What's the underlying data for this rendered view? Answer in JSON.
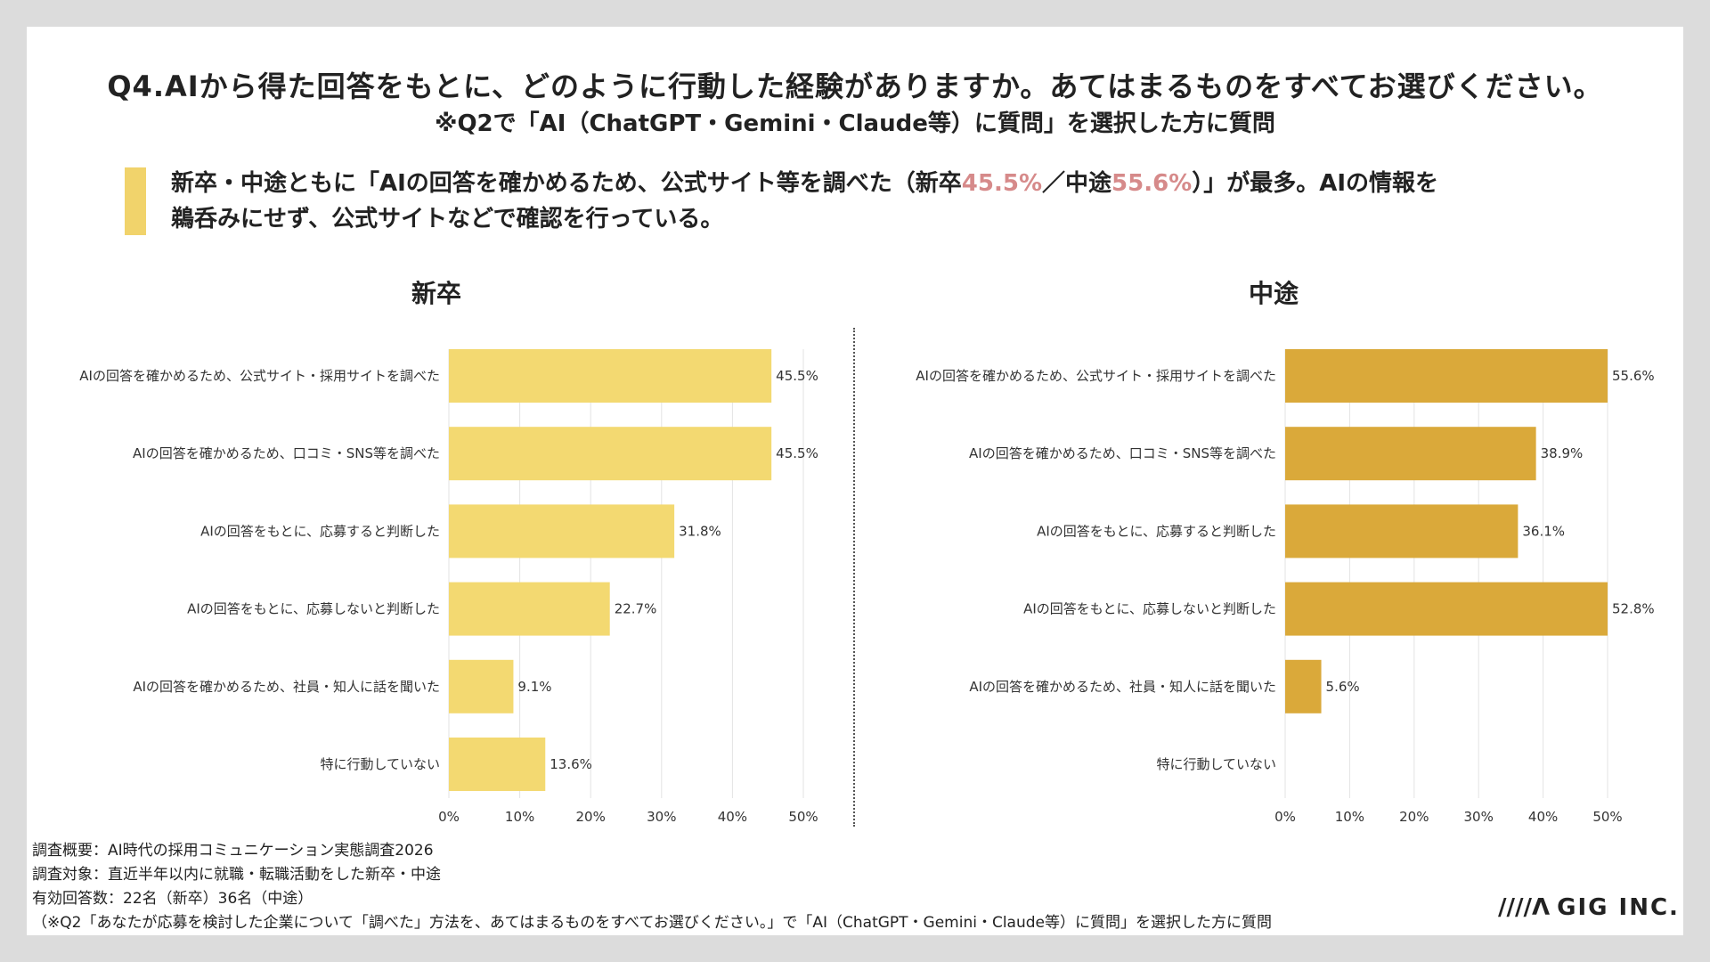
{
  "header": {
    "title": "Q4.AIから得た回答をもとに、どのように行動した経験がありますか。あてはまるものをすべてお選びください。",
    "subtitle": "※Q2で「AI（ChatGPT・Gemini・Claude等）に質問」を選択した方に質問"
  },
  "summary": {
    "line1_a": "新卒・中途ともに「AIの回答を確かめるため、公式サイト等を調べた（新卒",
    "line1_hl1": "45.5%",
    "line1_b": "／中途",
    "line1_hl2": "55.6%",
    "line1_c": "）」が最多。AIの情報を",
    "line2": "鵜呑みにせず、公式サイトなどで確認を行っている。",
    "accent_color": "#d68a8a"
  },
  "chart_data": [
    {
      "type": "bar",
      "orientation": "horizontal",
      "title": "新卒",
      "categories": [
        "AIの回答を確かめるため、公式サイト・採用サイトを調べた",
        "AIの回答を確かめるため、口コミ・SNS等を調べた",
        "AIの回答をもとに、応募すると判断した",
        "AIの回答をもとに、応募しないと判断した",
        "AIの回答を確かめるため、社員・知人に話を聞いた",
        "特に行動していない"
      ],
      "values": [
        45.5,
        45.5,
        31.8,
        22.7,
        9.1,
        13.6
      ],
      "value_labels": [
        "45.5%",
        "45.5%",
        "31.8%",
        "22.7%",
        "9.1%",
        "13.6%"
      ],
      "xlim": [
        0,
        50
      ],
      "ticks": [
        "0%",
        "10%",
        "20%",
        "30%",
        "40%",
        "50%"
      ],
      "grid": true,
      "color": "#f3d971"
    },
    {
      "type": "bar",
      "orientation": "horizontal",
      "title": "中途",
      "categories": [
        "AIの回答を確かめるため、公式サイト・採用サイトを調べた",
        "AIの回答を確かめるため、口コミ・SNS等を調べた",
        "AIの回答をもとに、応募すると判断した",
        "AIの回答をもとに、応募しないと判断した",
        "AIの回答を確かめるため、社員・知人に話を聞いた",
        "特に行動していない"
      ],
      "values": [
        55.6,
        38.9,
        36.1,
        52.8,
        5.6,
        0
      ],
      "value_labels": [
        "55.6%",
        "38.9%",
        "36.1%",
        "52.8%",
        "5.6%",
        ""
      ],
      "xlim": [
        0,
        50
      ],
      "ticks": [
        "0%",
        "10%",
        "20%",
        "30%",
        "40%",
        "50%"
      ],
      "grid": true,
      "color": "#daa93a"
    }
  ],
  "footer": {
    "line1": "調査概要：AI時代の採用コミュニケーション実態調査2026",
    "line2": "調査対象：直近半年以内に就職・転職活動をした新卒・中途",
    "line3": "有効回答数：22名（新卒）36名（中途）",
    "line4": "（※Q2「あなたが応募を検討した企業について「調べた」方法を、あてはまるものをすべてお選びください。」で「AI（ChatGPT・Gemini・Claude等）に質問」を選択した方に質問"
  },
  "logo": {
    "mark": "////Λ",
    "text": "GIG INC."
  }
}
